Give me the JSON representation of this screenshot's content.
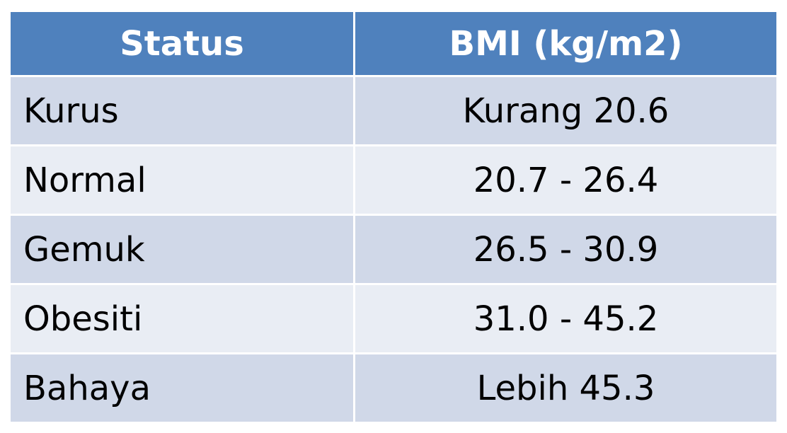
{
  "table": {
    "header": [
      "Status",
      "BMI (kg/m2)"
    ],
    "rows": [
      [
        "Kurus",
        "Kurang 20.6"
      ],
      [
        "Normal",
        "20.7 - 26.4"
      ],
      [
        "Gemuk",
        "26.5 - 30.9"
      ],
      [
        "Obesiti",
        "31.0 - 45.2"
      ],
      [
        "Bahaya",
        "Lebih 45.3"
      ]
    ]
  }
}
